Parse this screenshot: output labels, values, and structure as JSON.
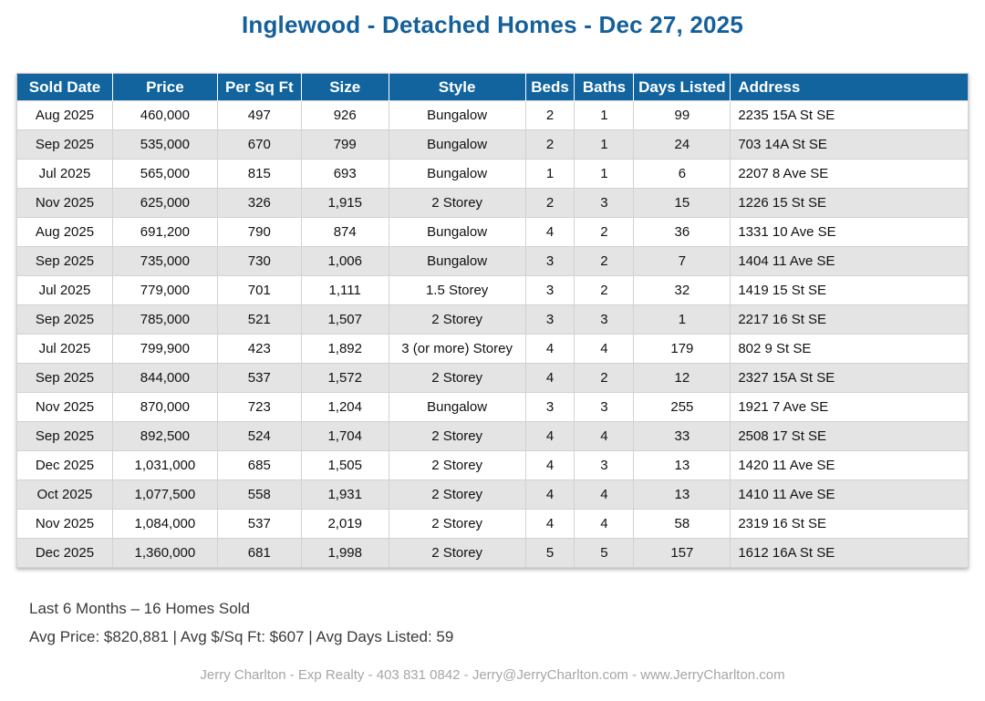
{
  "page": {
    "title": "Inglewood - Detached Homes - Dec 27, 2025"
  },
  "table": {
    "columns": [
      "Sold Date",
      "Price",
      "Per Sq Ft",
      "Size",
      "Style",
      "Beds",
      "Baths",
      "Days Listed",
      "Address"
    ],
    "rows": [
      [
        "Aug 2025",
        "460,000",
        "497",
        "926",
        "Bungalow",
        "2",
        "1",
        "99",
        "2235 15A St SE"
      ],
      [
        "Sep 2025",
        "535,000",
        "670",
        "799",
        "Bungalow",
        "2",
        "1",
        "24",
        "703 14A St SE"
      ],
      [
        "Jul 2025",
        "565,000",
        "815",
        "693",
        "Bungalow",
        "1",
        "1",
        "6",
        "2207 8 Ave SE"
      ],
      [
        "Nov 2025",
        "625,000",
        "326",
        "1,915",
        "2 Storey",
        "2",
        "3",
        "15",
        "1226 15 St SE"
      ],
      [
        "Aug 2025",
        "691,200",
        "790",
        "874",
        "Bungalow",
        "4",
        "2",
        "36",
        "1331 10 Ave SE"
      ],
      [
        "Sep 2025",
        "735,000",
        "730",
        "1,006",
        "Bungalow",
        "3",
        "2",
        "7",
        "1404 11 Ave SE"
      ],
      [
        "Jul 2025",
        "779,000",
        "701",
        "1,111",
        "1.5 Storey",
        "3",
        "2",
        "32",
        "1419 15 St SE"
      ],
      [
        "Sep 2025",
        "785,000",
        "521",
        "1,507",
        "2 Storey",
        "3",
        "3",
        "1",
        "2217 16 St SE"
      ],
      [
        "Jul 2025",
        "799,900",
        "423",
        "1,892",
        "3 (or more) Storey",
        "4",
        "4",
        "179",
        "802 9 St SE"
      ],
      [
        "Sep 2025",
        "844,000",
        "537",
        "1,572",
        "2 Storey",
        "4",
        "2",
        "12",
        "2327 15A St SE"
      ],
      [
        "Nov 2025",
        "870,000",
        "723",
        "1,204",
        "Bungalow",
        "3",
        "3",
        "255",
        "1921 7 Ave SE"
      ],
      [
        "Sep 2025",
        "892,500",
        "524",
        "1,704",
        "2 Storey",
        "4",
        "4",
        "33",
        "2508 17 St SE"
      ],
      [
        "Dec 2025",
        "1,031,000",
        "685",
        "1,505",
        "2 Storey",
        "4",
        "3",
        "13",
        "1420 11 Ave SE"
      ],
      [
        "Oct 2025",
        "1,077,500",
        "558",
        "1,931",
        "2 Storey",
        "4",
        "4",
        "13",
        "1410 11 Ave SE"
      ],
      [
        "Nov 2025",
        "1,084,000",
        "537",
        "2,019",
        "2 Storey",
        "4",
        "4",
        "58",
        "2319 16 St SE"
      ],
      [
        "Dec 2025",
        "1,360,000",
        "681",
        "1,998",
        "2 Storey",
        "5",
        "5",
        "157",
        "1612 16A St SE"
      ]
    ]
  },
  "summary": {
    "line1": "Last 6 Months – 16 Homes Sold",
    "line2": "Avg Price: $820,881 | Avg $/Sq Ft: $607 | Avg Days Listed: 59"
  },
  "footer": {
    "contact": "Jerry Charlton - Exp Realty - 403 831 0842 - Jerry@JerryCharlton.com - www.JerryCharlton.com"
  },
  "colors": {
    "header_bg": "#11649E",
    "title_text": "#15609A",
    "row_alt_bg": "#E4E4E4",
    "cell_border": "#D2D2D2",
    "footer_text": "#A6A6A6"
  }
}
